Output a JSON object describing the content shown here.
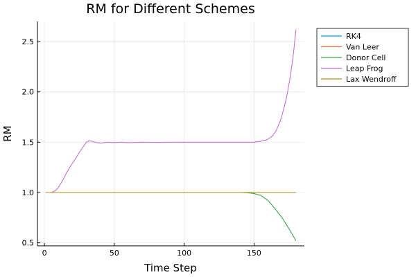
{
  "chart_data": {
    "type": "line",
    "title": "RM for Different Schemes",
    "xlabel": "Time Step",
    "ylabel": "RM",
    "xlim": [
      -5,
      186
    ],
    "ylim": [
      0.47,
      2.7
    ],
    "xticks": [
      0,
      50,
      100,
      150
    ],
    "yticks": [
      0.5,
      1.0,
      1.5,
      2.0,
      2.5
    ],
    "xtick_labels": [
      "0",
      "50",
      "100",
      "150"
    ],
    "ytick_labels": [
      "0.5",
      "1.0",
      "1.5",
      "2.0",
      "2.5"
    ],
    "grid": true,
    "legend_position": "outside-top-right",
    "series": [
      {
        "name": "RK4",
        "color": "#009AFA",
        "x": [
          1,
          180
        ],
        "y": [
          1.0,
          1.0
        ]
      },
      {
        "name": "Van Leer",
        "color": "#E36F47",
        "x": [
          1,
          180
        ],
        "y": [
          1.0,
          1.0
        ]
      },
      {
        "name": "Donor Cell",
        "color": "#3EA44E",
        "x": [
          1,
          50,
          100,
          140,
          145,
          150,
          155,
          160,
          165,
          170,
          175,
          180
        ],
        "y": [
          1.0,
          1.0,
          1.0,
          1.0,
          0.998,
          0.99,
          0.97,
          0.92,
          0.84,
          0.75,
          0.64,
          0.52
        ]
      },
      {
        "name": "Leap Frog",
        "color": "#C371D2",
        "x": [
          1,
          5,
          8,
          10,
          13,
          16,
          19,
          22,
          25,
          28,
          30,
          32,
          34,
          36,
          38,
          40,
          45,
          50,
          55,
          60,
          70,
          80,
          90,
          100,
          120,
          140,
          150,
          155,
          158,
          160,
          163,
          166,
          169,
          172,
          174,
          176,
          178,
          180
        ],
        "y": [
          1.0,
          1.0,
          1.02,
          1.05,
          1.12,
          1.2,
          1.27,
          1.33,
          1.4,
          1.46,
          1.5,
          1.515,
          1.51,
          1.5,
          1.495,
          1.49,
          1.5,
          1.495,
          1.5,
          1.495,
          1.5,
          1.498,
          1.5,
          1.5,
          1.5,
          1.5,
          1.5,
          1.51,
          1.52,
          1.53,
          1.56,
          1.62,
          1.72,
          1.87,
          2.0,
          2.16,
          2.36,
          2.62
        ]
      },
      {
        "name": "Lax Wendroff",
        "color": "#AC8D18",
        "x": [
          1,
          180
        ],
        "y": [
          1.0,
          1.0
        ]
      }
    ]
  }
}
